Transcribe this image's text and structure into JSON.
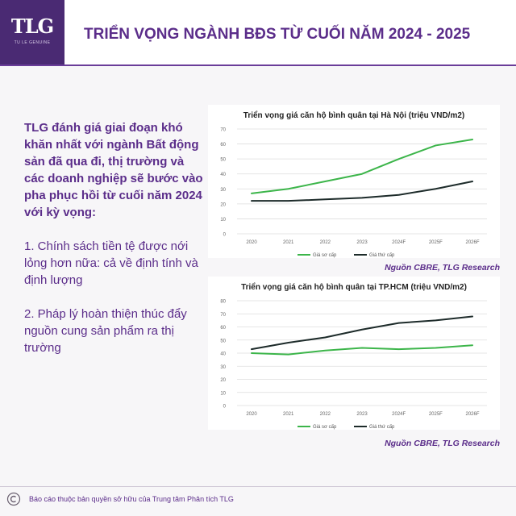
{
  "header": {
    "logo_text": "TLG",
    "logo_subtext": "TU LE GENUINE",
    "title": "TRIỂN VỌNG NGÀNH BĐS TỪ CUỐI NĂM 2024 - 2025"
  },
  "body": {
    "intro": "TLG đánh giá giai đoạn khó khăn nhất với ngành Bất động sản đã qua đi, thị trường và các doanh nghiệp sẽ bước vào pha phục hồi từ cuối năm 2024 với kỳ vọng:",
    "point1": "1. Chính sách tiền tệ được nới lỏng hơn nữa: cả về định tính và định lượng",
    "point2": "2. Pháp lý hoàn thiện thúc đẩy nguồn cung sản phẩm ra thị trường"
  },
  "footer": {
    "text": "Báo cáo thuộc bản quyền sở hữu của Trung tâm Phân tích TLG"
  },
  "colors": {
    "primary": "#5b2d8a",
    "primary_series": "#3cb54a",
    "secondary_series": "#1d2b2a"
  },
  "chart_data": [
    {
      "type": "line",
      "title": "Triển vọng giá căn hộ bình quân tại Hà Nội (triệu VND/m2)",
      "categories": [
        "2020",
        "2021",
        "2022",
        "2023",
        "2024F",
        "2025F",
        "2026F"
      ],
      "yticks": [
        "0",
        "10",
        "20",
        "30",
        "40",
        "50",
        "60",
        "70"
      ],
      "ylim": [
        0,
        70
      ],
      "grid": true,
      "legend_position": "bottom",
      "source": "Nguồn CBRE, TLG Research",
      "series": [
        {
          "name": "Giá sơ cấp",
          "color": "#3cb54a",
          "values": [
            27,
            30,
            35,
            40,
            50,
            59,
            63
          ]
        },
        {
          "name": "Giá thứ cấp",
          "color": "#1d2b2a",
          "values": [
            22,
            22,
            23,
            24,
            26,
            30,
            35
          ]
        }
      ]
    },
    {
      "type": "line",
      "title": "Triển vọng giá căn hộ bình quân tại TP.HCM (triệu VND/m2)",
      "categories": [
        "2020",
        "2021",
        "2022",
        "2023",
        "2024F",
        "2025F",
        "2026F"
      ],
      "yticks": [
        "0",
        "10",
        "20",
        "30",
        "40",
        "50",
        "60",
        "70",
        "80"
      ],
      "ylim": [
        0,
        80
      ],
      "grid": true,
      "legend_position": "bottom",
      "source": "Nguồn CBRE, TLG Research",
      "series": [
        {
          "name": "Giá sơ cấp",
          "color": "#3cb54a",
          "values": [
            40,
            39,
            42,
            44,
            43,
            44,
            46
          ]
        },
        {
          "name": "Giá thứ cấp",
          "color": "#1d2b2a",
          "values": [
            43,
            48,
            52,
            58,
            63,
            65,
            68
          ]
        }
      ]
    }
  ]
}
